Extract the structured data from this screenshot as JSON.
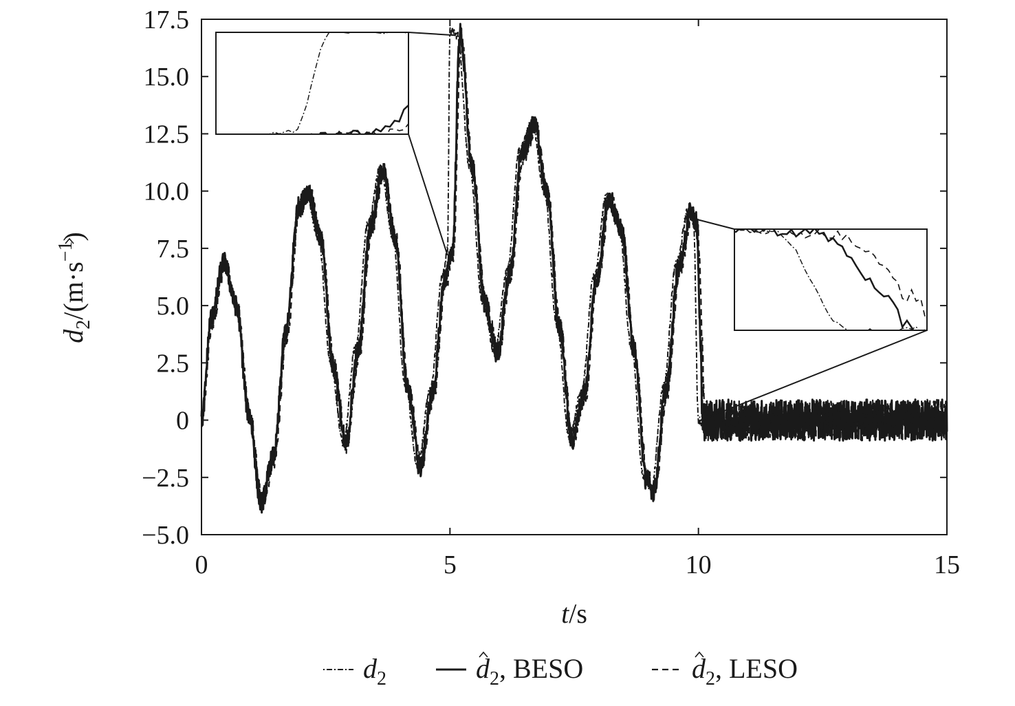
{
  "chart_data": {
    "type": "line",
    "xlabel": {
      "var": "t",
      "unit": "/s"
    },
    "ylabel": {
      "var": "d",
      "sub": "2",
      "unit": "/(m·s",
      "exp": "−1",
      "close": ")"
    },
    "xlim": [
      0,
      15
    ],
    "ylim": [
      -5.0,
      17.5
    ],
    "x_ticks": [
      0,
      5,
      10,
      15
    ],
    "x_tick_labels": [
      "0",
      "5",
      "10",
      "15"
    ],
    "y_ticks": [
      -5.0,
      -2.5,
      0,
      2.5,
      5.0,
      7.5,
      10.0,
      12.5,
      15.0,
      17.5
    ],
    "y_tick_labels": [
      "−5.0",
      "−2.5",
      "0",
      "2.5",
      "5.0",
      "7.5",
      "10.0",
      "12.5",
      "15.0",
      "17.5"
    ],
    "grid": false,
    "legend_position": "bottom-center",
    "legend": [
      {
        "var": "d",
        "sub": "2",
        "suffix": "",
        "style": "dash-dot"
      },
      {
        "var": "d",
        "sub": "2",
        "hat": true,
        "suffix": ", BESO",
        "style": "solid"
      },
      {
        "var": "d",
        "sub": "2",
        "hat": true,
        "suffix": ", LESO",
        "style": "dashed"
      }
    ],
    "series": [
      {
        "style": "dash-dot",
        "x": [
          0,
          0.2,
          0.45,
          0.7,
          0.95,
          1.2,
          1.45,
          1.7,
          1.95,
          2.1,
          2.35,
          2.6,
          2.85,
          3.1,
          3.35,
          3.6,
          3.85,
          4.1,
          4.35,
          4.6,
          4.85,
          4.95,
          5.0,
          5.15,
          5.4,
          5.65,
          5.9,
          6.15,
          6.4,
          6.65,
          6.9,
          7.15,
          7.4,
          7.65,
          7.9,
          8.15,
          8.4,
          8.65,
          8.9,
          9.05,
          9.3,
          9.55,
          9.8,
          9.9,
          10.0,
          10.5,
          11,
          11.5,
          12,
          12.5,
          13,
          13.5,
          14,
          14.5,
          15
        ],
        "y": [
          0.0,
          4.6,
          7.0,
          5.0,
          0.4,
          -3.5,
          -1.5,
          4.0,
          9.4,
          10.0,
          8.0,
          2.5,
          -1.0,
          3.2,
          8.6,
          11.0,
          8.0,
          1.5,
          -2.0,
          1.3,
          6.3,
          7.4,
          17.0,
          16.8,
          11.0,
          5.2,
          3.0,
          6.5,
          11.8,
          13.0,
          10.0,
          4.2,
          -0.8,
          1.3,
          6.3,
          9.8,
          8.4,
          3.2,
          -2.5,
          -3.0,
          1.5,
          6.8,
          9.2,
          8.8,
          0.0,
          0.0,
          0.0,
          0.0,
          0.0,
          0.0,
          0.0,
          0.0,
          0.0,
          0.0,
          0.0
        ]
      },
      {
        "style": "solid",
        "x": [
          0,
          0.2,
          0.45,
          0.7,
          0.95,
          1.2,
          1.45,
          1.7,
          1.95,
          2.15,
          2.4,
          2.65,
          2.9,
          3.15,
          3.4,
          3.65,
          3.9,
          4.15,
          4.4,
          4.65,
          4.9,
          5.05,
          5.2,
          5.45,
          5.7,
          5.95,
          6.2,
          6.45,
          6.7,
          6.95,
          7.2,
          7.45,
          7.7,
          7.95,
          8.2,
          8.45,
          8.7,
          8.95,
          9.1,
          9.35,
          9.6,
          9.85,
          9.95,
          10.1,
          10.5,
          11,
          11.5,
          12,
          12.5,
          13,
          13.5,
          14,
          14.5,
          15
        ],
        "y": [
          0.0,
          4.5,
          6.9,
          5.0,
          0.3,
          -3.6,
          -1.6,
          3.9,
          9.3,
          10.0,
          7.9,
          2.4,
          -1.1,
          3.0,
          8.5,
          10.9,
          7.9,
          1.4,
          -2.1,
          1.2,
          6.2,
          7.4,
          16.9,
          11.0,
          5.1,
          2.9,
          6.4,
          11.7,
          12.9,
          9.9,
          4.1,
          -0.9,
          1.2,
          6.2,
          9.7,
          8.3,
          3.1,
          -2.6,
          -3.1,
          1.4,
          6.7,
          9.1,
          8.7,
          0.0,
          0.0,
          0.0,
          0.0,
          0.0,
          0.0,
          0.0,
          0.0,
          0.0,
          0.0,
          0.0
        ]
      },
      {
        "style": "dashed",
        "x": [
          0,
          0.22,
          0.47,
          0.72,
          0.97,
          1.22,
          1.47,
          1.72,
          1.97,
          2.17,
          2.42,
          2.67,
          2.92,
          3.17,
          3.42,
          3.67,
          3.92,
          4.17,
          4.42,
          4.67,
          4.92,
          5.07,
          5.22,
          5.47,
          5.72,
          5.97,
          6.22,
          6.47,
          6.72,
          6.97,
          7.22,
          7.47,
          7.72,
          7.97,
          8.22,
          8.47,
          8.72,
          8.97,
          9.12,
          9.37,
          9.62,
          9.87,
          9.97,
          10.15,
          10.5,
          11,
          11.5,
          12,
          12.5,
          13,
          13.5,
          14,
          14.5,
          15
        ],
        "y": [
          0.0,
          4.4,
          6.8,
          4.9,
          0.2,
          -3.5,
          -1.7,
          3.8,
          9.2,
          9.9,
          7.8,
          2.3,
          -1.0,
          2.9,
          8.4,
          10.8,
          7.8,
          1.3,
          -2.0,
          1.1,
          6.1,
          7.3,
          16.7,
          10.9,
          5.0,
          3.0,
          6.3,
          11.6,
          12.8,
          9.8,
          4.0,
          -0.8,
          1.1,
          6.1,
          9.6,
          8.2,
          3.0,
          -2.5,
          -3.0,
          1.3,
          6.6,
          9.0,
          8.6,
          0.0,
          0.0,
          0.0,
          0.0,
          0.0,
          0.0,
          0.0,
          0.0,
          0.0,
          0.0,
          0.0
        ]
      }
    ],
    "insets": [
      {
        "region": {
          "x": [
            4.85,
            5.1
          ],
          "y": [
            7.2,
            16.9
          ]
        }
      },
      {
        "region": {
          "x": [
            9.85,
            10.1
          ],
          "y": [
            0.0,
            9.0
          ]
        }
      }
    ]
  }
}
